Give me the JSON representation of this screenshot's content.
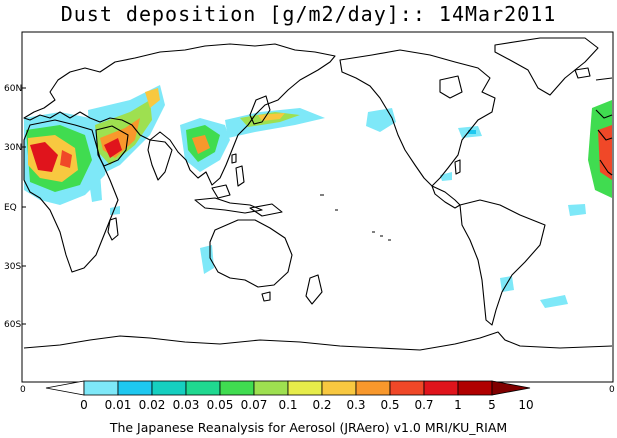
{
  "title": "Dust deposition [g/m2/day]:: 14Mar2011",
  "lat_labels": [
    "60N",
    "30N",
    "EQ",
    "30S",
    "60S"
  ],
  "side_labels": {
    "left": "0",
    "right": "0"
  },
  "colorbar": {
    "labels": [
      "0",
      "0.01",
      "0.02",
      "0.03",
      "0.05",
      "0.07",
      "0.1",
      "0.2",
      "0.3",
      "0.5",
      "0.7",
      "1",
      "5",
      "10"
    ],
    "colors": [
      "#ffffff",
      "#7ee8f8",
      "#1ec8f0",
      "#16cfc0",
      "#20d890",
      "#40dc50",
      "#9ee050",
      "#e6ec4a",
      "#f8c840",
      "#f8982c",
      "#f04828",
      "#e0141c",
      "#b00000",
      "#800000"
    ]
  },
  "credit": "The Japanese Reanalysis for Aerosol (JRAero) v1.0 MRI/KU_RIAM"
}
